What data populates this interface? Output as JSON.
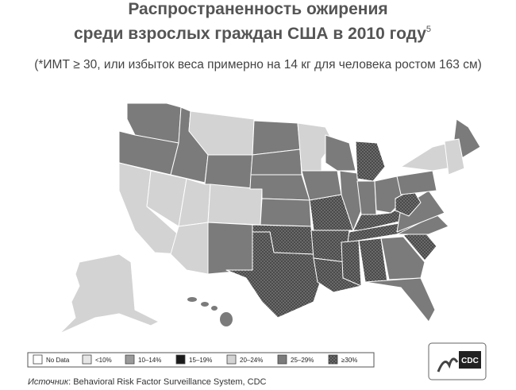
{
  "title_line1": "Распространенность ожирения",
  "title_line2": "среди взрослых граждан США в 2010 году",
  "title_footnote": "5",
  "subtitle": "(*ИМТ ≥ 30, или избыток веса примерно на 14 кг для человека ростом 163 см)",
  "legend": [
    {
      "label": "No Data",
      "color": "#ffffff"
    },
    {
      "label": "<10%",
      "color": "#e6e6e6"
    },
    {
      "label": "10–14%",
      "color": "#9a9a9a"
    },
    {
      "label": "15–19%",
      "color": "#1a1a1a"
    },
    {
      "label": "20–24%",
      "color": "#d3d3d3"
    },
    {
      "label": "25–29%",
      "color": "#7b7b7b"
    },
    {
      "label": "≥30%",
      "color": "dots"
    }
  ],
  "source_prefix": "Источник",
  "source_text": ": Behavioral Risk Factor Surveillance System, CDC",
  "logo": "CDC"
}
